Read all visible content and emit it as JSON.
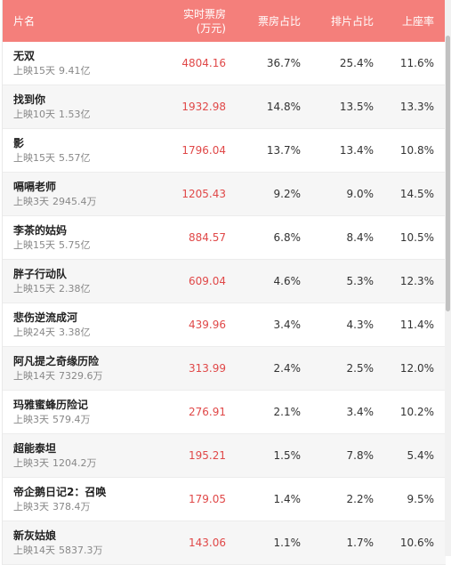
{
  "header": {
    "name": "片名",
    "boxoffice_line1": "实时票房",
    "boxoffice_line2": "(万元)",
    "boxoffice_share": "票房占比",
    "screening_share": "排片占比",
    "occupancy": "上座率"
  },
  "rows": [
    {
      "title": "无双",
      "days": "上映15天",
      "total": "9.41亿",
      "boxoffice": "4804.16",
      "box_share": "36.7%",
      "screen_share": "25.4%",
      "occupancy": "11.6%"
    },
    {
      "title": "找到你",
      "days": "上映10天",
      "total": "1.53亿",
      "boxoffice": "1932.98",
      "box_share": "14.8%",
      "screen_share": "13.5%",
      "occupancy": "13.3%"
    },
    {
      "title": "影",
      "days": "上映15天",
      "total": "5.57亿",
      "boxoffice": "1796.04",
      "box_share": "13.7%",
      "screen_share": "13.4%",
      "occupancy": "10.8%"
    },
    {
      "title": "嗝嗝老师",
      "days": "上映3天",
      "total": "2945.4万",
      "boxoffice": "1205.43",
      "box_share": "9.2%",
      "screen_share": "9.0%",
      "occupancy": "14.5%"
    },
    {
      "title": "李茶的姑妈",
      "days": "上映15天",
      "total": "5.75亿",
      "boxoffice": "884.57",
      "box_share": "6.8%",
      "screen_share": "8.4%",
      "occupancy": "10.5%"
    },
    {
      "title": "胖子行动队",
      "days": "上映15天",
      "total": "2.38亿",
      "boxoffice": "609.04",
      "box_share": "4.6%",
      "screen_share": "5.3%",
      "occupancy": "12.3%"
    },
    {
      "title": "悲伤逆流成河",
      "days": "上映24天",
      "total": "3.38亿",
      "boxoffice": "439.96",
      "box_share": "3.4%",
      "screen_share": "4.3%",
      "occupancy": "11.4%"
    },
    {
      "title": "阿凡提之奇缘历险",
      "days": "上映14天",
      "total": "7329.6万",
      "boxoffice": "313.99",
      "box_share": "2.4%",
      "screen_share": "2.5%",
      "occupancy": "12.0%"
    },
    {
      "title": "玛雅蜜蜂历险记",
      "days": "上映3天",
      "total": "579.4万",
      "boxoffice": "276.91",
      "box_share": "2.1%",
      "screen_share": "3.4%",
      "occupancy": "10.2%"
    },
    {
      "title": "超能泰坦",
      "days": "上映3天",
      "total": "1204.2万",
      "boxoffice": "195.21",
      "box_share": "1.5%",
      "screen_share": "7.8%",
      "occupancy": "5.4%"
    },
    {
      "title": "帝企鹅日记2：召唤",
      "days": "上映3天",
      "total": "378.4万",
      "boxoffice": "179.05",
      "box_share": "1.4%",
      "screen_share": "2.2%",
      "occupancy": "9.5%"
    },
    {
      "title": "新灰姑娘",
      "days": "上映14天",
      "total": "5837.3万",
      "boxoffice": "143.06",
      "box_share": "1.1%",
      "screen_share": "1.7%",
      "occupancy": "10.6%"
    }
  ],
  "colors": {
    "header_bg": "#f47f7b",
    "boxoffice_text": "#e04848"
  }
}
